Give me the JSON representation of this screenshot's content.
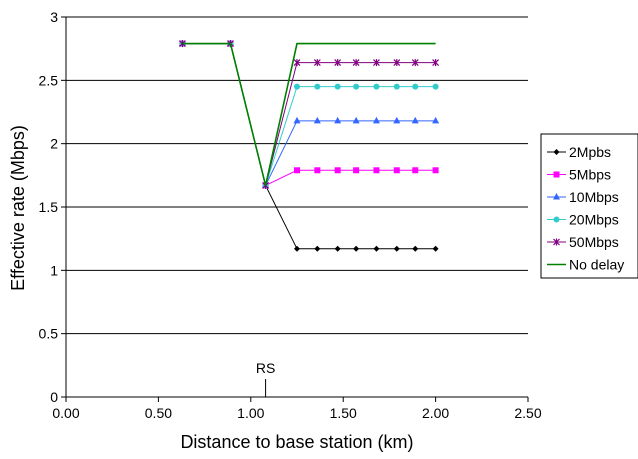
{
  "chart_data": {
    "type": "line",
    "title": "",
    "xlabel": "Distance to base station (km)",
    "ylabel": "Effective rate (Mbps)",
    "xlim": [
      0,
      2.5
    ],
    "ylim": [
      0,
      3
    ],
    "x_ticks": [
      "0.00",
      "0.50",
      "1.00",
      "1.50",
      "2.00",
      "2.50"
    ],
    "y_ticks": [
      "0",
      "0.5",
      "1",
      "1.5",
      "2",
      "2.5",
      "3"
    ],
    "horizontal_grid": true,
    "legend_position": "right",
    "annotation": {
      "label": "RS",
      "x": 1.08
    },
    "x": [
      0.63,
      0.89,
      1.08,
      1.25,
      1.36,
      1.47,
      1.57,
      1.68,
      1.79,
      1.89,
      2.0
    ],
    "series": [
      {
        "name": "2Mpbs",
        "color": "#000000",
        "marker": "diamond",
        "values": [
          2.79,
          2.79,
          1.67,
          1.17,
          1.17,
          1.17,
          1.17,
          1.17,
          1.17,
          1.17,
          1.17
        ]
      },
      {
        "name": "5Mbps",
        "color": "#ff00ff",
        "marker": "square",
        "values": [
          2.79,
          2.79,
          1.67,
          1.79,
          1.79,
          1.79,
          1.79,
          1.79,
          1.79,
          1.79,
          1.79
        ]
      },
      {
        "name": "10Mbps",
        "color": "#3366ff",
        "marker": "triangle",
        "values": [
          2.79,
          2.79,
          1.67,
          2.18,
          2.18,
          2.18,
          2.18,
          2.18,
          2.18,
          2.18,
          2.18
        ]
      },
      {
        "name": "20Mbps",
        "color": "#33cccc",
        "marker": "circle",
        "values": [
          2.79,
          2.79,
          1.67,
          2.45,
          2.45,
          2.45,
          2.45,
          2.45,
          2.45,
          2.45,
          2.45
        ]
      },
      {
        "name": "50Mbps",
        "color": "#800080",
        "marker": "star",
        "values": [
          2.79,
          2.79,
          1.67,
          2.64,
          2.64,
          2.64,
          2.64,
          2.64,
          2.64,
          2.64,
          2.64
        ]
      },
      {
        "name": "No delay",
        "color": "#008000",
        "marker": "none",
        "x": [
          0.63,
          0.89,
          1.08,
          1.25,
          2.0
        ],
        "values": [
          2.79,
          2.79,
          1.67,
          2.79,
          2.79
        ]
      }
    ]
  }
}
